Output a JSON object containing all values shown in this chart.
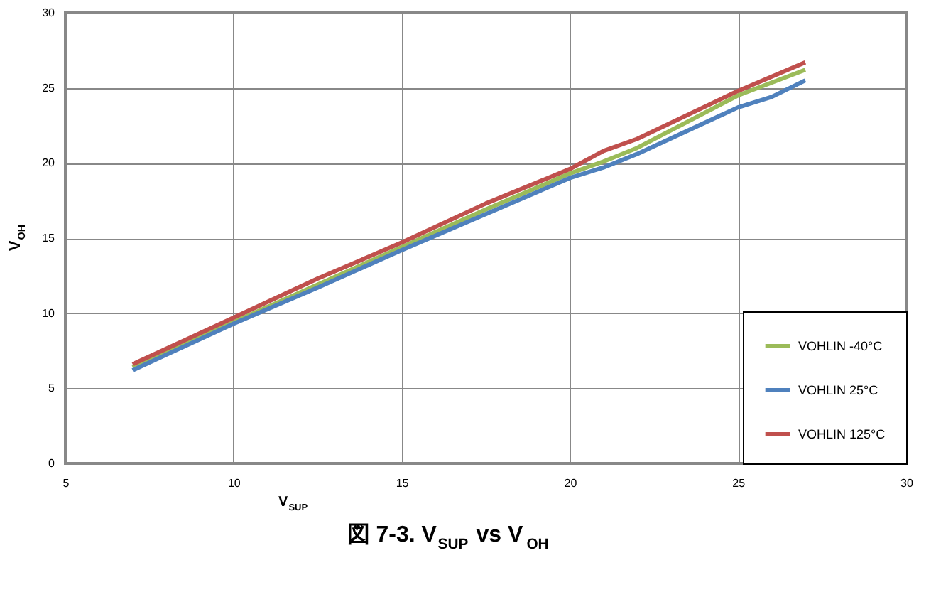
{
  "chart_data": {
    "type": "line",
    "title": "図 7-3. V$_{SUP}$ vs V$_{OH}$",
    "xlabel": "V$_{SUP}$",
    "ylabel": "V$_{OH}$",
    "xlim": [
      5,
      30
    ],
    "xticks": [
      5,
      10,
      15,
      20,
      25,
      30
    ],
    "ylim": [
      0,
      30
    ],
    "yticks": [
      0,
      5,
      10,
      15,
      20,
      25,
      30
    ],
    "grid": true,
    "legend": "bottom right",
    "marker": "none",
    "line_style": "solid",
    "series": [
      {
        "name": "VOHLIN -40°C",
        "color": "#9bbb59",
        "x": [
          7,
          10,
          12.5,
          15,
          17.5,
          20,
          21,
          22,
          25,
          27
        ],
        "values": [
          6.4,
          9.4,
          11.9,
          14.4,
          16.9,
          19.3,
          20.1,
          21.0,
          24.5,
          26.2
        ]
      },
      {
        "name": "VOHLIN 25°C",
        "color": "#4f81bd",
        "x": [
          7,
          10,
          12.5,
          15,
          17.5,
          20,
          21,
          22,
          25,
          26,
          27
        ],
        "values": [
          6.2,
          9.3,
          11.7,
          14.2,
          16.6,
          19.0,
          19.7,
          20.6,
          23.7,
          24.4,
          25.5
        ]
      },
      {
        "name": "VOHLIN 125°C",
        "color": "#c0504d",
        "x": [
          7,
          10,
          12.5,
          15,
          17.5,
          20,
          21,
          22,
          25,
          27
        ],
        "values": [
          6.6,
          9.7,
          12.3,
          14.7,
          17.3,
          19.6,
          20.8,
          21.6,
          24.8,
          26.7
        ]
      }
    ]
  }
}
